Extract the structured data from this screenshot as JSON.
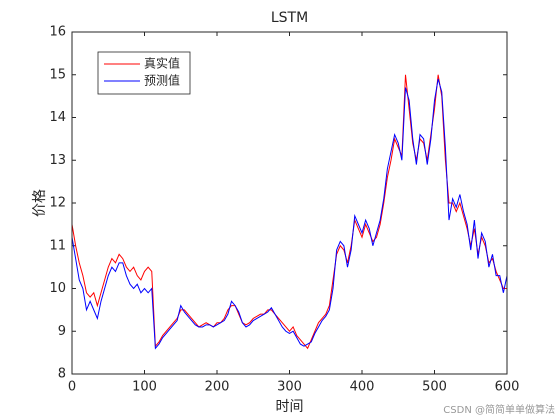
{
  "chart_data": {
    "type": "line",
    "title": "LSTM",
    "x_label": "时间",
    "y_label": "价格",
    "x": [
      0,
      5,
      10,
      15,
      20,
      25,
      30,
      35,
      40,
      45,
      50,
      55,
      60,
      65,
      70,
      75,
      80,
      85,
      90,
      95,
      100,
      105,
      110,
      115,
      120,
      125,
      130,
      135,
      140,
      145,
      150,
      155,
      160,
      165,
      170,
      175,
      180,
      185,
      190,
      195,
      200,
      205,
      210,
      215,
      220,
      225,
      230,
      235,
      240,
      245,
      250,
      255,
      260,
      265,
      270,
      275,
      280,
      285,
      290,
      295,
      300,
      305,
      310,
      315,
      320,
      325,
      330,
      335,
      340,
      345,
      350,
      355,
      360,
      365,
      370,
      375,
      380,
      385,
      390,
      395,
      400,
      405,
      410,
      415,
      420,
      425,
      430,
      435,
      440,
      445,
      450,
      455,
      460,
      465,
      470,
      475,
      480,
      485,
      490,
      495,
      500,
      505,
      510,
      515,
      520,
      525,
      530,
      535,
      540,
      545,
      550,
      555,
      560,
      565,
      570,
      575,
      580,
      585,
      590,
      595,
      600
    ],
    "series": [
      {
        "name": "真实值",
        "color": "#ff0000",
        "values": [
          11.5,
          11.0,
          10.6,
          10.3,
          9.9,
          9.8,
          9.9,
          9.6,
          9.9,
          10.2,
          10.5,
          10.7,
          10.6,
          10.8,
          10.7,
          10.5,
          10.4,
          10.5,
          10.3,
          10.2,
          10.4,
          10.5,
          10.4,
          8.65,
          8.75,
          8.9,
          9.0,
          9.1,
          9.2,
          9.3,
          9.5,
          9.5,
          9.4,
          9.3,
          9.2,
          9.1,
          9.15,
          9.2,
          9.15,
          9.1,
          9.2,
          9.2,
          9.3,
          9.5,
          9.6,
          9.6,
          9.4,
          9.2,
          9.15,
          9.2,
          9.3,
          9.35,
          9.4,
          9.4,
          9.5,
          9.5,
          9.4,
          9.3,
          9.2,
          9.1,
          9.0,
          9.1,
          8.9,
          8.8,
          8.7,
          8.6,
          8.8,
          9.0,
          9.2,
          9.3,
          9.4,
          9.6,
          10.2,
          10.8,
          11.0,
          10.9,
          10.6,
          11.0,
          11.6,
          11.4,
          11.2,
          11.5,
          11.3,
          11.1,
          11.2,
          11.5,
          12.0,
          12.6,
          13.0,
          13.5,
          13.3,
          13.1,
          15.0,
          14.2,
          13.4,
          13.0,
          13.5,
          13.4,
          13.0,
          13.6,
          14.2,
          15.0,
          14.5,
          13.0,
          12.0,
          12.0,
          11.8,
          12.0,
          11.7,
          11.4,
          11.0,
          11.4,
          10.8,
          11.2,
          11.0,
          10.6,
          10.7,
          10.4,
          10.2,
          10.0,
          10.0
        ]
      },
      {
        "name": "预测值",
        "color": "#0000ff",
        "values": [
          11.2,
          10.7,
          10.2,
          10.0,
          9.5,
          9.7,
          9.5,
          9.3,
          9.7,
          10.0,
          10.3,
          10.5,
          10.4,
          10.6,
          10.6,
          10.3,
          10.1,
          10.0,
          10.1,
          9.9,
          10.0,
          9.9,
          10.0,
          8.6,
          8.7,
          8.85,
          8.95,
          9.05,
          9.15,
          9.25,
          9.6,
          9.45,
          9.35,
          9.25,
          9.15,
          9.1,
          9.1,
          9.15,
          9.15,
          9.1,
          9.15,
          9.2,
          9.25,
          9.4,
          9.7,
          9.6,
          9.45,
          9.2,
          9.1,
          9.15,
          9.25,
          9.3,
          9.35,
          9.4,
          9.45,
          9.55,
          9.4,
          9.25,
          9.1,
          9.0,
          8.95,
          9.0,
          8.85,
          8.7,
          8.65,
          8.7,
          8.75,
          8.95,
          9.1,
          9.25,
          9.35,
          9.5,
          10.0,
          10.9,
          11.1,
          11.0,
          10.5,
          10.9,
          11.7,
          11.5,
          11.3,
          11.6,
          11.4,
          11.0,
          11.3,
          11.6,
          12.1,
          12.8,
          13.2,
          13.6,
          13.4,
          13.0,
          14.7,
          14.4,
          13.5,
          12.9,
          13.6,
          13.5,
          12.9,
          13.5,
          14.4,
          14.9,
          14.6,
          13.3,
          11.6,
          12.1,
          11.9,
          12.2,
          11.8,
          11.5,
          10.9,
          11.6,
          10.7,
          11.3,
          11.1,
          10.5,
          10.8,
          10.3,
          10.3,
          9.9,
          10.3
        ]
      }
    ],
    "xlim": [
      0,
      600
    ],
    "xticks": [
      0,
      100,
      200,
      300,
      400,
      500,
      600
    ],
    "ylim": [
      8,
      16
    ],
    "yticks": [
      8,
      9,
      10,
      11,
      12,
      13,
      14,
      15,
      16
    ],
    "grid": false,
    "legend": "upper left",
    "watermark": "CSDN @简简单单做算法"
  }
}
